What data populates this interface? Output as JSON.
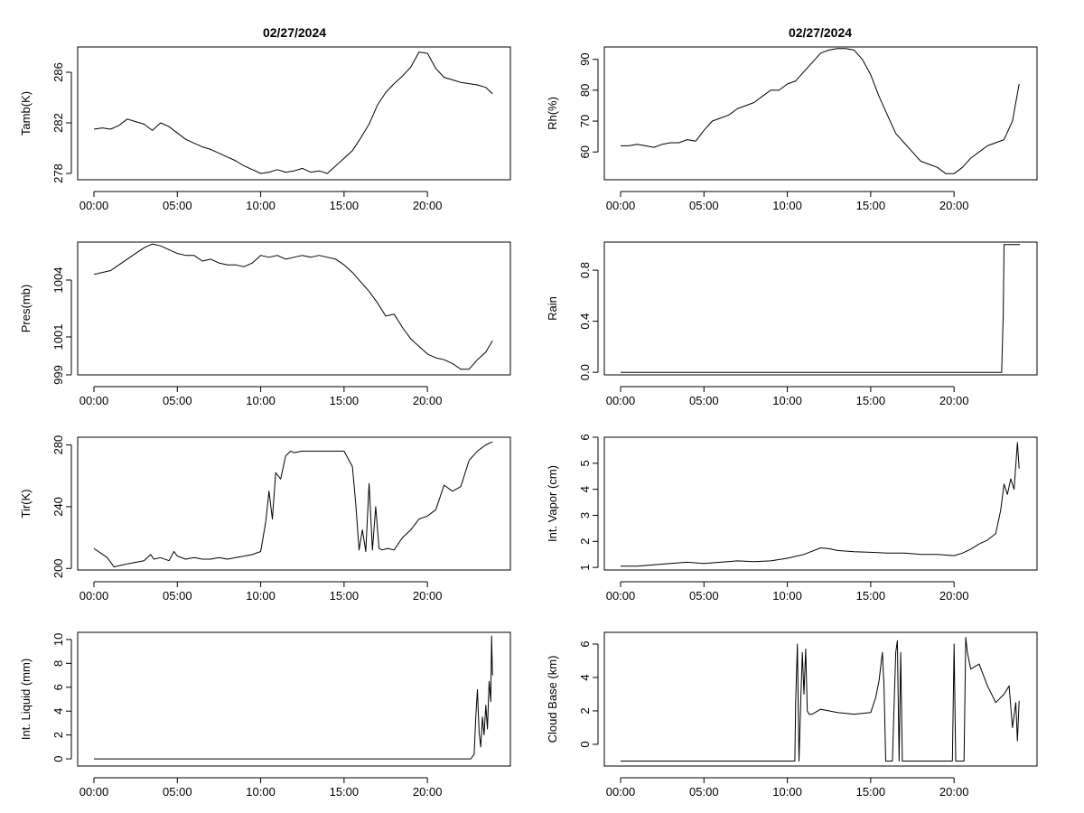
{
  "figure": {
    "titles": [
      "02/27/2024",
      "02/27/2024"
    ],
    "colors": {
      "line": "#000000",
      "background": "#ffffff"
    }
  },
  "chart_data": [
    {
      "type": "line",
      "ylabel": "Tamb(K)",
      "xticks": [
        "00:00",
        "05:00",
        "10:00",
        "15:00",
        "20:00"
      ],
      "xlim": [
        0,
        24
      ],
      "yticks": [
        "278",
        "282",
        "286"
      ],
      "ytick_values": [
        278,
        282,
        286
      ],
      "ylim": [
        277.5,
        288
      ],
      "x": [
        0,
        0.5,
        1,
        1.5,
        2,
        2.5,
        3,
        3.5,
        4,
        4.5,
        5,
        5.5,
        6,
        6.5,
        7,
        7.5,
        8,
        8.5,
        9,
        9.5,
        10,
        10.5,
        11,
        11.5,
        12,
        12.5,
        13,
        13.5,
        14,
        14.5,
        15,
        15.5,
        16,
        16.5,
        17,
        17.5,
        18,
        18.5,
        19,
        19.5,
        20,
        20.5,
        21,
        21.5,
        22,
        22.5,
        23,
        23.5,
        23.9
      ],
      "y": [
        281.5,
        281.6,
        281.5,
        281.8,
        282.3,
        282.1,
        281.9,
        281.4,
        282.0,
        281.7,
        281.2,
        280.7,
        280.4,
        280.1,
        279.9,
        279.6,
        279.3,
        279.0,
        278.6,
        278.3,
        278.0,
        278.1,
        278.3,
        278.1,
        278.2,
        278.4,
        278.1,
        278.2,
        278.0,
        278.6,
        279.2,
        279.8,
        280.8,
        281.9,
        283.4,
        284.4,
        285.1,
        285.7,
        286.4,
        287.6,
        287.5,
        286.3,
        285.6,
        285.4,
        285.2,
        285.1,
        285.0,
        284.8,
        284.3
      ],
      "grid": false,
      "legend": "none"
    },
    {
      "type": "line",
      "ylabel": "Rh(%)",
      "xticks": [
        "00:00",
        "05:00",
        "10:00",
        "15:00",
        "20:00"
      ],
      "xlim": [
        0,
        24
      ],
      "yticks": [
        "60",
        "70",
        "80",
        "90"
      ],
      "ytick_values": [
        60,
        70,
        80,
        90
      ],
      "ylim": [
        51,
        94
      ],
      "x": [
        0,
        0.5,
        1,
        1.5,
        2,
        2.5,
        3,
        3.5,
        4,
        4.5,
        5,
        5.5,
        6,
        6.5,
        7,
        7.5,
        8,
        8.5,
        9,
        9.5,
        10,
        10.5,
        11,
        11.5,
        12,
        12.5,
        13,
        13.5,
        14,
        14.5,
        15,
        15.5,
        16,
        16.5,
        17,
        17.5,
        18,
        18.5,
        19,
        19.5,
        20,
        20.5,
        21,
        21.5,
        22,
        22.5,
        23,
        23.5,
        23.9
      ],
      "y": [
        62,
        62,
        62.5,
        62,
        61.5,
        62.5,
        63,
        63,
        64,
        63.5,
        67,
        70,
        71,
        72,
        74,
        75,
        76,
        78,
        80,
        80,
        82,
        83,
        86,
        89,
        92,
        93,
        93.5,
        93.5,
        93,
        90,
        85,
        78,
        72,
        66,
        63,
        60,
        57,
        56,
        55,
        53,
        53,
        55,
        58,
        60,
        62,
        63,
        64,
        70,
        82
      ],
      "grid": false,
      "legend": "none"
    },
    {
      "type": "line",
      "ylabel": "Pres(mb)",
      "xticks": [
        "00:00",
        "05:00",
        "10:00",
        "15:00",
        "20:00"
      ],
      "xlim": [
        0,
        24
      ],
      "yticks": [
        "999",
        "1001",
        "1004"
      ],
      "ytick_values": [
        999,
        1001,
        1004
      ],
      "ylim": [
        999,
        1006
      ],
      "x": [
        0,
        0.5,
        1,
        1.5,
        2,
        2.5,
        3,
        3.5,
        4,
        4.5,
        5,
        5.5,
        6,
        6.5,
        7,
        7.5,
        8,
        8.5,
        9,
        9.5,
        10,
        10.5,
        11,
        11.5,
        12,
        12.5,
        13,
        13.5,
        14,
        14.5,
        15,
        15.5,
        16,
        16.5,
        17,
        17.5,
        18,
        18.5,
        19,
        19.5,
        20,
        20.5,
        21,
        21.5,
        22,
        22.5,
        23,
        23.5,
        23.9
      ],
      "y": [
        1004.3,
        1004.4,
        1004.5,
        1004.8,
        1005.1,
        1005.4,
        1005.7,
        1005.9,
        1005.8,
        1005.6,
        1005.4,
        1005.3,
        1005.3,
        1005.0,
        1005.1,
        1004.9,
        1004.8,
        1004.8,
        1004.7,
        1004.9,
        1005.3,
        1005.2,
        1005.3,
        1005.1,
        1005.2,
        1005.3,
        1005.2,
        1005.3,
        1005.2,
        1005.1,
        1004.8,
        1004.4,
        1003.9,
        1003.4,
        1002.8,
        1002.1,
        1002.2,
        1001.5,
        1000.9,
        1000.5,
        1000.1,
        999.9,
        999.8,
        999.6,
        999.3,
        999.3,
        999.8,
        1000.2,
        1000.8
      ],
      "grid": false,
      "legend": "none"
    },
    {
      "type": "line",
      "ylabel": "Rain",
      "xticks": [
        "00:00",
        "05:00",
        "10:00",
        "15:00",
        "20:00"
      ],
      "xlim": [
        0,
        24
      ],
      "yticks": [
        "0.0",
        "0.4",
        "0.8"
      ],
      "ytick_values": [
        0,
        0.4,
        0.8
      ],
      "ylim": [
        -0.02,
        1.02
      ],
      "x": [
        0,
        22.85,
        22.95,
        23.0,
        23.95
      ],
      "y": [
        0,
        0,
        0.45,
        1.0,
        1.0
      ],
      "grid": false,
      "legend": "none"
    },
    {
      "type": "line",
      "ylabel": "Tir(K)",
      "xticks": [
        "00:00",
        "05:00",
        "10:00",
        "15:00",
        "20:00"
      ],
      "xlim": [
        0,
        24
      ],
      "yticks": [
        "200",
        "240",
        "280"
      ],
      "ytick_values": [
        200,
        240,
        280
      ],
      "ylim": [
        199,
        285
      ],
      "x": [
        0,
        0.4,
        0.8,
        1.2,
        1.6,
        2,
        2.5,
        3,
        3.4,
        3.6,
        4,
        4.5,
        4.8,
        5,
        5.5,
        6,
        6.5,
        7,
        7.5,
        8,
        8.5,
        9,
        9.5,
        10,
        10.3,
        10.5,
        10.7,
        10.9,
        11.2,
        11.5,
        11.8,
        12,
        12.5,
        13,
        13.5,
        14,
        14.5,
        15,
        15.3,
        15.5,
        15.7,
        15.9,
        16.1,
        16.3,
        16.5,
        16.7,
        16.9,
        17.1,
        17.3,
        17.6,
        18,
        18.5,
        19,
        19.5,
        20,
        20.5,
        21,
        21.5,
        22,
        22.5,
        23,
        23.5,
        23.9
      ],
      "y": [
        213,
        210,
        207,
        201,
        202,
        203,
        204,
        205,
        209,
        206,
        207,
        205,
        211,
        208,
        206,
        207,
        206,
        206,
        207,
        206,
        207,
        208,
        209,
        211,
        230,
        250,
        232,
        262,
        258,
        273,
        276,
        275,
        276,
        276,
        276,
        276,
        276,
        276,
        270,
        266,
        242,
        212,
        225,
        211,
        255,
        212,
        240,
        213,
        212,
        213,
        212,
        220,
        225,
        232,
        234,
        238,
        254,
        250,
        253,
        270,
        276,
        280,
        282
      ],
      "grid": false,
      "legend": "none"
    },
    {
      "type": "line",
      "ylabel": "Int. Vapor (cm)",
      "xticks": [
        "00:00",
        "05:00",
        "10:00",
        "15:00",
        "20:00"
      ],
      "xlim": [
        0,
        24
      ],
      "yticks": [
        "1",
        "2",
        "3",
        "4",
        "5",
        "6"
      ],
      "ytick_values": [
        1,
        2,
        3,
        4,
        5,
        6
      ],
      "ylim": [
        0.9,
        6
      ],
      "x": [
        0,
        1,
        2,
        3,
        4,
        5,
        6,
        7,
        8,
        9,
        10,
        11,
        12,
        12.5,
        13,
        14,
        15,
        16,
        17,
        18,
        19,
        20,
        20.5,
        21,
        21.5,
        22,
        22.5,
        22.8,
        23,
        23.2,
        23.4,
        23.6,
        23.8,
        23.9
      ],
      "y": [
        1.05,
        1.05,
        1.1,
        1.15,
        1.2,
        1.15,
        1.2,
        1.25,
        1.22,
        1.25,
        1.35,
        1.5,
        1.75,
        1.72,
        1.65,
        1.6,
        1.58,
        1.55,
        1.55,
        1.5,
        1.5,
        1.45,
        1.55,
        1.7,
        1.9,
        2.05,
        2.3,
        3.2,
        4.2,
        3.8,
        4.4,
        4.0,
        5.8,
        4.8
      ],
      "grid": false,
      "legend": "none"
    },
    {
      "type": "line",
      "ylabel": "Int. Liquid (mm)",
      "xticks": [
        "00:00",
        "05:00",
        "10:00",
        "15:00",
        "20:00"
      ],
      "xlim": [
        0,
        24
      ],
      "yticks": [
        "0",
        "2",
        "4",
        "6",
        "8",
        "10"
      ],
      "ytick_values": [
        0,
        2,
        4,
        6,
        8,
        10
      ],
      "ylim": [
        -0.6,
        10.6
      ],
      "x": [
        0,
        22.6,
        22.8,
        22.9,
        23.0,
        23.1,
        23.2,
        23.3,
        23.4,
        23.5,
        23.6,
        23.7,
        23.8,
        23.85,
        23.9
      ],
      "y": [
        0,
        0,
        0.4,
        3.5,
        5.8,
        2.2,
        1.0,
        3.5,
        2.0,
        4.5,
        2.5,
        6.5,
        4.8,
        10.3,
        7.0
      ],
      "grid": false,
      "legend": "none"
    },
    {
      "type": "line",
      "ylabel": "Cloud Base (km)",
      "xticks": [
        "00:00",
        "05:00",
        "10:00",
        "15:00",
        "20:00"
      ],
      "xlim": [
        0,
        24
      ],
      "yticks": [
        "0",
        "2",
        "4",
        "6"
      ],
      "ytick_values": [
        0,
        2,
        4,
        6
      ],
      "ylim": [
        -1.3,
        6.7
      ],
      "x": [
        0,
        10.45,
        10.5,
        10.6,
        10.7,
        10.8,
        10.9,
        11.0,
        11.1,
        11.2,
        11.3,
        11.5,
        12,
        13,
        14,
        15,
        15.3,
        15.5,
        15.7,
        15.8,
        15.9,
        16.0,
        16.3,
        16.5,
        16.6,
        16.7,
        16.8,
        16.9,
        17.0,
        17.2,
        17.5,
        18,
        19,
        19.9,
        20.0,
        20.1,
        20.2,
        20.3,
        20.5,
        20.6,
        20.7,
        20.8,
        21.0,
        21.5,
        22,
        22.5,
        23,
        23.3,
        23.5,
        23.7,
        23.8,
        23.9
      ],
      "y": [
        -1,
        -1,
        2.5,
        6.0,
        -1,
        2.5,
        5.5,
        3.0,
        5.7,
        2.0,
        1.8,
        1.8,
        2.1,
        1.9,
        1.8,
        1.9,
        2.8,
        3.8,
        5.5,
        3.5,
        -1,
        -1,
        -1,
        5.5,
        6.2,
        -1,
        5.5,
        -1,
        -1,
        -1,
        -1,
        -1,
        -1,
        -1,
        6.0,
        -1,
        -1,
        -1,
        -1,
        -1,
        6.4,
        5.5,
        4.5,
        4.8,
        3.5,
        2.5,
        3.0,
        3.5,
        1.0,
        2.5,
        0.2,
        2.6
      ],
      "grid": false,
      "legend": "none"
    }
  ]
}
